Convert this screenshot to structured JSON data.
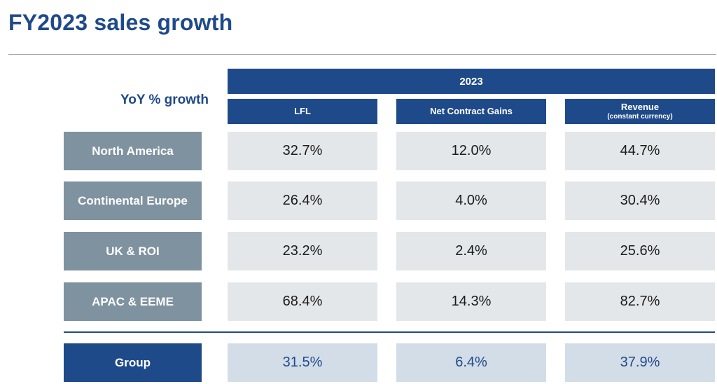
{
  "title": "FY2023 sales growth",
  "row_caption": "YoY % growth",
  "year": "2023",
  "columns": [
    {
      "label": "LFL",
      "sublabel": ""
    },
    {
      "label": "Net Contract Gains",
      "sublabel": ""
    },
    {
      "label": "Revenue",
      "sublabel": "(constant currency)"
    }
  ],
  "rows": [
    {
      "region": "North America",
      "values": [
        "32.7%",
        "12.0%",
        "44.7%"
      ]
    },
    {
      "region": "Continental Europe",
      "values": [
        "26.4%",
        "4.0%",
        "30.4%"
      ]
    },
    {
      "region": "UK & ROI",
      "values": [
        "23.2%",
        "2.4%",
        "25.6%"
      ]
    },
    {
      "region": "APAC & EEME",
      "values": [
        "68.4%",
        "14.3%",
        "82.7%"
      ]
    }
  ],
  "group": {
    "label": "Group",
    "values": [
      "31.5%",
      "6.4%",
      "37.9%"
    ]
  },
  "colors": {
    "brand_blue": "#1f4a8a",
    "row_label_grey": "#7f929f",
    "cell_grey": "#e3e7ea",
    "group_cell": "#d3dde8"
  }
}
